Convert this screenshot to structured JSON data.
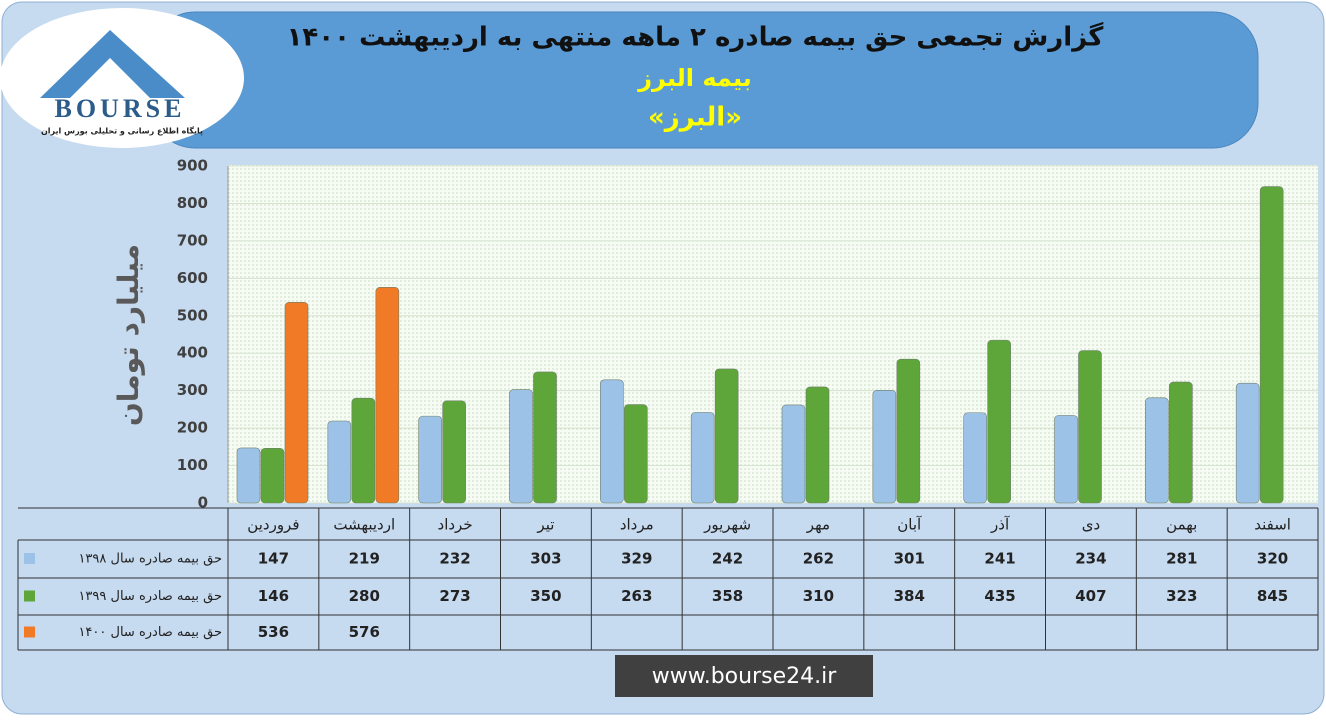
{
  "chart_data": {
    "type": "bar",
    "title": "گزارش تجمعی حق بیمه صادره ۲ ماهه منتهی به اردیبهشت ۱۴۰۰",
    "subtitle": "بیمه البرز",
    "symbol": "«البرز»",
    "logo_text": "BOURSE",
    "logo_caption": "پایگاه اطلاع رسانی و تحلیلی بورس ایران",
    "website": "www.bourse24.ir",
    "ylabel": "میلیارد تومان",
    "categories": [
      "فروردین",
      "اردیبهشت",
      "خرداد",
      "تیر",
      "مرداد",
      "شهریور",
      "مهر",
      "آبان",
      "آذر",
      "دی",
      "بهمن",
      "اسفند"
    ],
    "series": [
      {
        "name": "حق بیمه صادره سال ۱۳۹۸",
        "color": "#9cc2e8",
        "values": [
          147,
          219,
          232,
          303,
          329,
          242,
          262,
          301,
          241,
          234,
          281,
          320
        ]
      },
      {
        "name": "حق بیمه صادره سال ۱۳۹۹",
        "color": "#5ea63a",
        "values": [
          146,
          280,
          273,
          350,
          263,
          358,
          310,
          384,
          435,
          407,
          323,
          845
        ]
      },
      {
        "name": "حق بیمه صادره سال ۱۴۰۰",
        "color": "#f07a26",
        "values": [
          536,
          576,
          null,
          null,
          null,
          null,
          null,
          null,
          null,
          null,
          null,
          null
        ]
      }
    ],
    "ylim": [
      0,
      900
    ],
    "yticks": [
      0,
      100,
      200,
      300,
      400,
      500,
      600,
      700,
      800,
      900
    ],
    "grid": true
  }
}
